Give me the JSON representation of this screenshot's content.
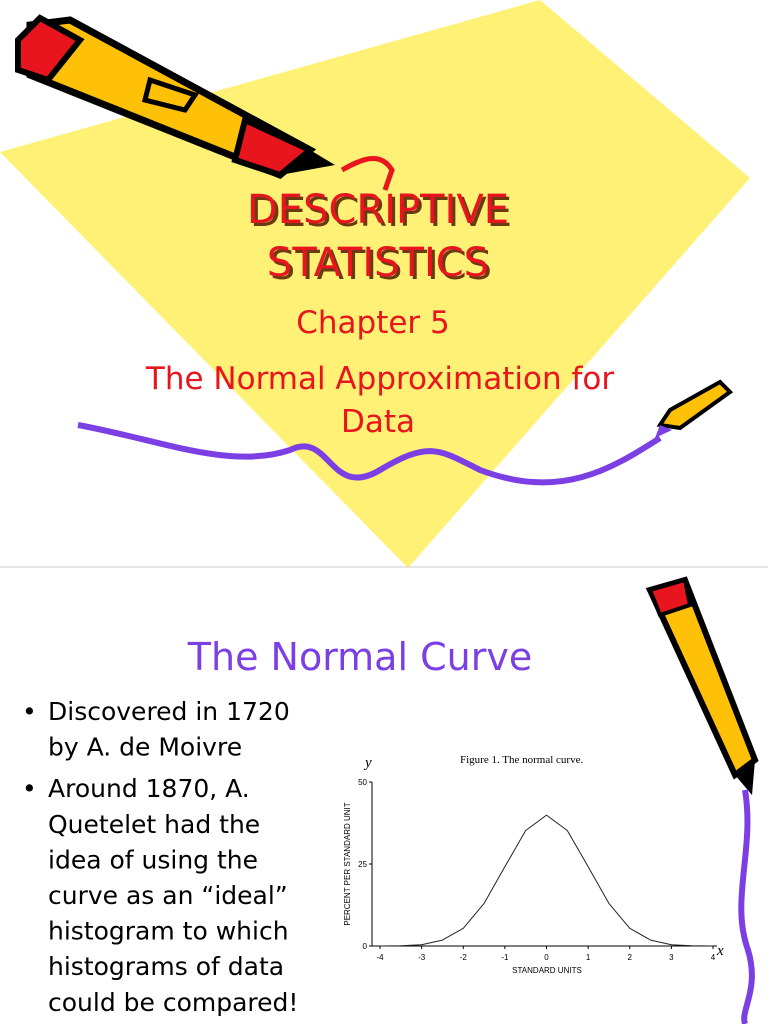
{
  "slide1": {
    "title_lines": [
      "DESCRIPTIVE",
      "STATISTICS"
    ],
    "subtitle": "Chapter 5",
    "heading_lines": [
      "The Normal Approximation for",
      "Data"
    ]
  },
  "slide2": {
    "title": "The Normal Curve",
    "bullets": [
      [
        "Discovered in 1720",
        "by A. de Moivre"
      ],
      [
        "Around 1870, A.",
        "Quetelet had the",
        "idea of using the",
        "curve as an “ideal”",
        "histogram to which",
        "histograms of data",
        "could be compared!"
      ]
    ]
  },
  "figure": {
    "type": "line",
    "caption": "Figure 1.   The normal curve.",
    "y_symbol": "y",
    "x_symbol": "x",
    "ylabel": "PERCENT PER STANDARD UNIT",
    "xlabel": "STANDARD UNITS",
    "x": [
      -4,
      -3.5,
      -3,
      -2.5,
      -2,
      -1.5,
      -1,
      -0.5,
      0,
      0.5,
      1,
      1.5,
      2,
      2.5,
      3,
      3.5,
      4
    ],
    "values": [
      0,
      0.1,
      0.4,
      1.8,
      5.4,
      13,
      24.2,
      35.2,
      39.9,
      35.2,
      24.2,
      13,
      5.4,
      1.8,
      0.4,
      0.1,
      0
    ],
    "color": "#222222",
    "xlim": [
      -4,
      4
    ],
    "ylim": [
      0,
      50
    ],
    "xticks": [
      -4,
      -3,
      -2,
      -1,
      0,
      1,
      2,
      3,
      4
    ],
    "yticks": [
      0,
      25,
      50
    ]
  }
}
